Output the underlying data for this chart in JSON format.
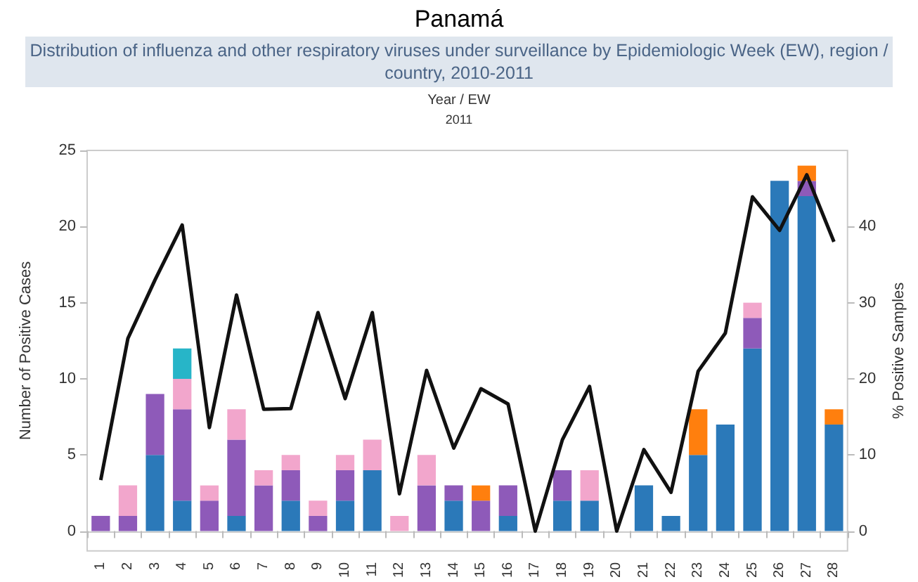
{
  "chart_data": {
    "type": "bar",
    "title": "Panamá",
    "subtitle": "Distribution of influenza and other respiratory viruses under surveillance by Epidemiologic Week (EW), region / country, 2010-2011",
    "xlabel": "Year / EW",
    "annotations": [
      "2011"
    ],
    "ylabel": "Number of Positive Cases",
    "y2label": "% Positive Samples",
    "categories": [
      "1",
      "2",
      "3",
      "4",
      "5",
      "6",
      "7",
      "8",
      "9",
      "10",
      "11",
      "12",
      "13",
      "14",
      "15",
      "16",
      "17",
      "18",
      "19",
      "20",
      "21",
      "22",
      "23",
      "24",
      "25",
      "26",
      "27",
      "28"
    ],
    "stacked": true,
    "ylim": [
      -1.3,
      25
    ],
    "yticks": [
      0,
      5,
      10,
      15,
      20,
      25
    ],
    "y2lim": [
      -2.6,
      50
    ],
    "y2ticks": [
      0,
      10,
      20,
      30,
      40
    ],
    "marker": "none",
    "line_style": "solid",
    "series": [
      {
        "color": "#2b79b9",
        "values": [
          0,
          0,
          5,
          2,
          0,
          1,
          0,
          2,
          0,
          2,
          4,
          0,
          0,
          2,
          0,
          1,
          0,
          2,
          2,
          0,
          3,
          1,
          5,
          7,
          12,
          23,
          22,
          7
        ]
      },
      {
        "color": "#8e5ab9",
        "values": [
          1,
          1,
          4,
          6,
          2,
          5,
          3,
          2,
          1,
          2,
          0,
          0,
          3,
          1,
          2,
          2,
          0,
          2,
          0,
          0,
          0,
          0,
          0,
          0,
          2,
          0,
          1,
          0
        ]
      },
      {
        "color": "#f2a6cc",
        "values": [
          0,
          2,
          0,
          2,
          1,
          2,
          1,
          1,
          1,
          1,
          2,
          1,
          2,
          0,
          0,
          0,
          0,
          0,
          2,
          0,
          0,
          0,
          0,
          0,
          1,
          0,
          0,
          0
        ]
      },
      {
        "color": "#27b5c8",
        "values": [
          0,
          0,
          0,
          2,
          0,
          0,
          0,
          0,
          0,
          0,
          0,
          0,
          0,
          0,
          0,
          0,
          0,
          0,
          0,
          0,
          0,
          0,
          0,
          0,
          0,
          0,
          0,
          0
        ]
      },
      {
        "color": "#ff7f0e",
        "values": [
          0,
          0,
          0,
          0,
          0,
          0,
          0,
          0,
          0,
          0,
          0,
          0,
          0,
          0,
          1,
          0,
          0,
          0,
          0,
          0,
          0,
          0,
          3,
          0,
          0,
          0,
          1,
          1
        ]
      },
      {
        "type": "line",
        "axis": "y2",
        "color": "#111111",
        "values": [
          6.7,
          25.3,
          33,
          40.2,
          13.6,
          31,
          16,
          16.1,
          28.7,
          17.4,
          28.7,
          4.9,
          21.1,
          10.9,
          18.7,
          16.7,
          0,
          12,
          19,
          0,
          10.7,
          5.1,
          21,
          26,
          43.9,
          39.5,
          46.8,
          38
        ]
      }
    ]
  }
}
